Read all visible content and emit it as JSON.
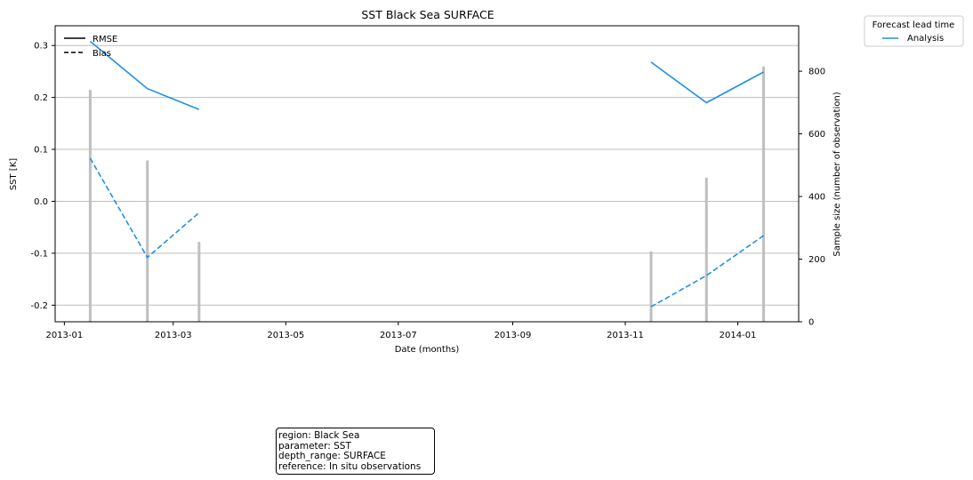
{
  "info_box": {
    "lines": [
      "region: Black Sea",
      "parameter: SST",
      "depth_range: SURFACE",
      "reference: In situ observations"
    ]
  },
  "chart_data": {
    "type": "line",
    "title": "SST Black Sea SURFACE",
    "xlabel": "Date (months)",
    "ylabel": "SST [K]",
    "ylabel_right": "Sample size (number of observation)",
    "x_ticks": [
      "2013-01",
      "2013-03",
      "2013-05",
      "2013-07",
      "2013-09",
      "2013-11",
      "2014-01"
    ],
    "y_ticks": [
      0.3,
      0.2,
      0.1,
      0.0,
      -0.1,
      -0.2
    ],
    "y_ticks_right": [
      0,
      200,
      400,
      600,
      800
    ],
    "ylim": [
      -0.232,
      0.338
    ],
    "ylim_right": [
      0,
      945
    ],
    "xlim": [
      "2012-12-27",
      "2014-02-03"
    ],
    "grid": "horizontal",
    "style_legend": {
      "placement": "top-left",
      "entries": [
        {
          "label": "RMSE",
          "dash": "solid"
        },
        {
          "label": "Bias",
          "dash": "dashed"
        }
      ]
    },
    "lead_legend": {
      "title": "Forecast lead time",
      "placement": "outside-top-right",
      "entries": [
        {
          "label": "Analysis",
          "color": "#1f8fec"
        }
      ]
    },
    "series": [
      {
        "name": "Analysis",
        "metric": "RMSE",
        "color": "#1f8fec",
        "dash": "solid",
        "segments": [
          [
            [
              "2013-01-15",
              0.308
            ],
            [
              "2013-02-15",
              0.217
            ],
            [
              "2013-03-15",
              0.177
            ]
          ],
          [
            [
              "2013-11-15",
              0.268
            ],
            [
              "2013-12-15",
              0.19
            ],
            [
              "2014-01-15",
              0.249
            ]
          ]
        ]
      },
      {
        "name": "Analysis",
        "metric": "Bias",
        "color": "#1f8fec",
        "dash": "dashed",
        "segments": [
          [
            [
              "2013-01-15",
              0.083
            ],
            [
              "2013-02-15",
              -0.108
            ],
            [
              "2013-03-15",
              -0.022
            ]
          ],
          [
            [
              "2013-11-15",
              -0.203
            ],
            [
              "2013-12-15",
              -0.143
            ],
            [
              "2014-01-15",
              -0.066
            ]
          ]
        ]
      }
    ],
    "sample_size": {
      "color": "#bfbfbf",
      "bars": [
        [
          "2013-01-15",
          740
        ],
        [
          "2013-02-15",
          515
        ],
        [
          "2013-03-15",
          255
        ],
        [
          "2013-11-15",
          225
        ],
        [
          "2013-12-15",
          460
        ],
        [
          "2014-01-15",
          815
        ]
      ]
    }
  }
}
